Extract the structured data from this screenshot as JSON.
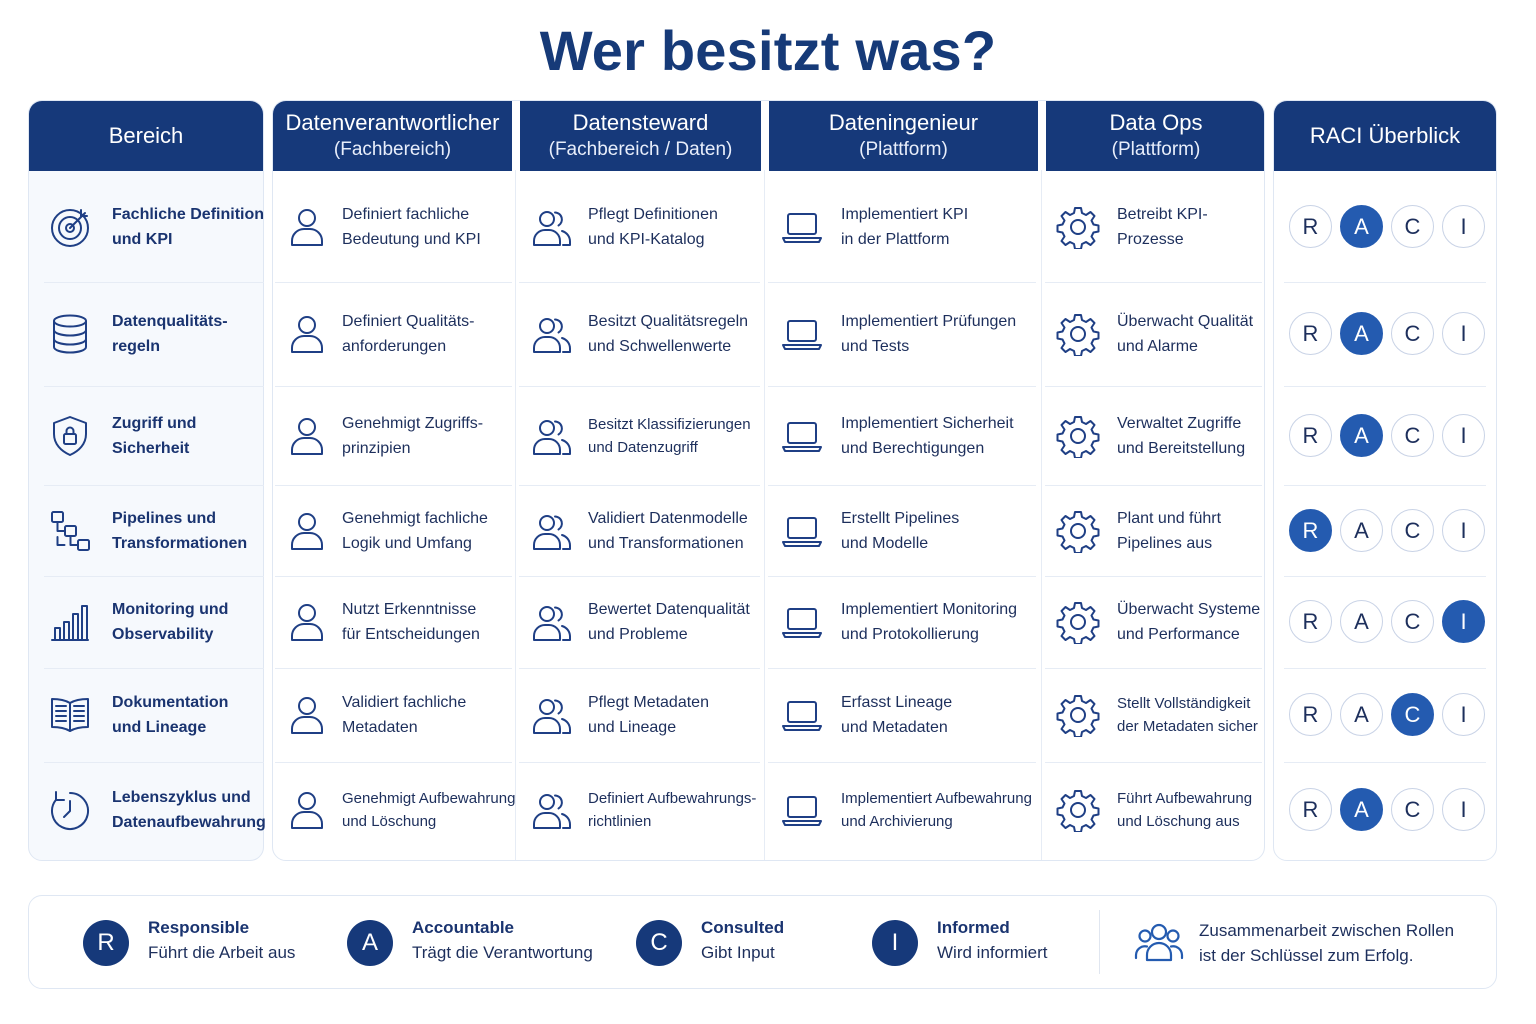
{
  "title": "Wer besitzt was?",
  "columns": {
    "bereich": {
      "line1": "Bereich",
      "line2": ""
    },
    "owner": {
      "line1": "Datenverantwortlicher",
      "line2": "(Fachbereich)"
    },
    "steward": {
      "line1": "Datensteward",
      "line2": "(Fachbereich / Daten)"
    },
    "engineer": {
      "line1": "Dateningenieur",
      "line2": "(Plattform)"
    },
    "ops": {
      "line1": "Data Ops",
      "line2": "(Plattform)"
    },
    "raci": {
      "line1": "RACI Überblick",
      "line2": ""
    }
  },
  "raci_letters": [
    "R",
    "A",
    "C",
    "I"
  ],
  "rows": [
    {
      "icon": "target-icon",
      "area": [
        "Fachliche Definition",
        "und KPI"
      ],
      "owner": [
        "Definiert fachliche",
        "Bedeutung und KPI"
      ],
      "steward": [
        "Pflegt Definitionen",
        "und KPI-Katalog"
      ],
      "engineer": [
        "Implementiert KPI",
        "in der Plattform"
      ],
      "ops": [
        "Betreibt KPI-",
        "Prozesse"
      ],
      "raci_active": "A"
    },
    {
      "icon": "database-icon",
      "area": [
        "Datenqualitäts-",
        "regeln"
      ],
      "owner": [
        "Definiert Qualitäts-",
        "anforderungen"
      ],
      "steward": [
        "Besitzt Qualitätsregeln",
        "und Schwellenwerte"
      ],
      "engineer": [
        "Implementiert Prüfungen",
        "und Tests"
      ],
      "ops": [
        "Überwacht Qualität",
        "und Alarme"
      ],
      "raci_active": "A"
    },
    {
      "icon": "shield-lock-icon",
      "area": [
        "Zugriff und",
        "Sicherheit"
      ],
      "owner": [
        "Genehmigt Zugriffs-",
        "prinzipien"
      ],
      "steward": [
        "Besitzt Klassifizierungen",
        "und Datenzugriff"
      ],
      "engineer": [
        "Implementiert Sicherheit",
        "und Berechtigungen"
      ],
      "ops": [
        "Verwaltet Zugriffe",
        "und Bereitstellung"
      ],
      "raci_active": "A"
    },
    {
      "icon": "pipeline-icon",
      "area": [
        "Pipelines und",
        "Transformationen"
      ],
      "owner": [
        "Genehmigt fachliche",
        "Logik und Umfang"
      ],
      "steward": [
        "Validiert Datenmodelle",
        "und Transformationen"
      ],
      "engineer": [
        "Erstellt Pipelines",
        "und Modelle"
      ],
      "ops": [
        "Plant und führt",
        "Pipelines aus"
      ],
      "raci_active": "R"
    },
    {
      "icon": "bar-chart-icon",
      "area": [
        "Monitoring und",
        "Observability"
      ],
      "owner": [
        "Nutzt Erkenntnisse",
        "für Entscheidungen"
      ],
      "steward": [
        "Bewertet Datenqualität",
        "und Probleme"
      ],
      "engineer": [
        "Implementiert Monitoring",
        "und Protokollierung"
      ],
      "ops": [
        "Überwacht Systeme",
        "und Performance"
      ],
      "raci_active": "I"
    },
    {
      "icon": "book-icon",
      "area": [
        "Dokumentation",
        "und Lineage"
      ],
      "owner": [
        "Validiert fachliche",
        "Metadaten"
      ],
      "steward": [
        "Pflegt Metadaten",
        "und Lineage"
      ],
      "engineer": [
        "Erfasst Lineage",
        "und Metadaten"
      ],
      "ops": [
        "Stellt Vollständigkeit",
        "der Metadaten sicher"
      ],
      "raci_active": "C"
    },
    {
      "icon": "timer-icon",
      "area": [
        "Lebenszyklus und",
        "Datenaufbewahrung"
      ],
      "owner": [
        "Genehmigt Aufbewahrung",
        "und Löschung"
      ],
      "steward": [
        "Definiert Aufbewahrungs-",
        "richtlinien"
      ],
      "engineer": [
        "Implementiert Aufbewahrung",
        "und Archivierung"
      ],
      "ops": [
        "Führt Aufbewahrung",
        "und Löschung aus"
      ],
      "raci_active": "A"
    }
  ],
  "legend": [
    {
      "letter": "R",
      "term": "Responsible",
      "desc": "Führt die Arbeit aus"
    },
    {
      "letter": "A",
      "term": "Accountable",
      "desc": "Trägt die Verantwortung"
    },
    {
      "letter": "C",
      "term": "Consulted",
      "desc": "Gibt Input"
    },
    {
      "letter": "I",
      "term": "Informed",
      "desc": "Wird informiert"
    }
  ],
  "collab": {
    "icon": "team-icon",
    "line1": "Zusammenarbeit zwischen Rollen",
    "line2": "ist der Schlüssel zum Erfolg."
  },
  "colors": {
    "header": "#16397a",
    "active": "#245bb0",
    "border": "#dfe7f3"
  }
}
